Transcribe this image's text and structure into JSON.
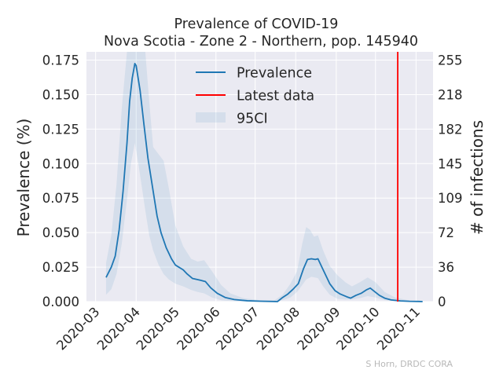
{
  "chart_data": {
    "type": "line",
    "title": "Prevalence of COVID-19",
    "subtitle": "Nova Scotia - Zone 2 - Northern, pop. 145940",
    "ylabel": "Prevalence (%)",
    "y2label": "# of infections",
    "xlim": [
      "2020-02-23",
      "2020-11-14"
    ],
    "ylim": [
      0,
      0.181
    ],
    "x_ticks": [
      "2020-03",
      "2020-04",
      "2020-05",
      "2020-06",
      "2020-07",
      "2020-08",
      "2020-09",
      "2020-10",
      "2020-11"
    ],
    "x_tick_dates": [
      "2020-03-01",
      "2020-04-01",
      "2020-05-01",
      "2020-06-01",
      "2020-07-01",
      "2020-08-01",
      "2020-09-01",
      "2020-10-01",
      "2020-11-01"
    ],
    "y_ticks": [
      "0.000",
      "0.025",
      "0.050",
      "0.075",
      "0.100",
      "0.125",
      "0.150",
      "0.175"
    ],
    "y_tick_values": [
      0,
      0.025,
      0.05,
      0.075,
      0.1,
      0.125,
      0.15,
      0.175
    ],
    "y2_ticks": [
      "0",
      "36",
      "72",
      "109",
      "145",
      "182",
      "218",
      "255"
    ],
    "grid": true,
    "legend_position": "top-center",
    "series": [
      {
        "name": "Prevalence",
        "kind": "line",
        "color": "#1f77b4",
        "points": [
          [
            "2020-03-09",
            0.0175
          ],
          [
            "2020-03-13",
            0.025
          ],
          [
            "2020-03-16",
            0.033
          ],
          [
            "2020-03-19",
            0.052
          ],
          [
            "2020-03-22",
            0.08
          ],
          [
            "2020-03-25",
            0.115
          ],
          [
            "2020-03-27",
            0.145
          ],
          [
            "2020-03-29",
            0.162
          ],
          [
            "2020-03-31",
            0.1725
          ],
          [
            "2020-04-01",
            0.171
          ],
          [
            "2020-04-04",
            0.153
          ],
          [
            "2020-04-07",
            0.128
          ],
          [
            "2020-04-10",
            0.104
          ],
          [
            "2020-04-14",
            0.08
          ],
          [
            "2020-04-17",
            0.062
          ],
          [
            "2020-04-20",
            0.05
          ],
          [
            "2020-04-24",
            0.039
          ],
          [
            "2020-04-28",
            0.031
          ],
          [
            "2020-05-01",
            0.0265
          ],
          [
            "2020-05-07",
            0.023
          ],
          [
            "2020-05-10",
            0.02
          ],
          [
            "2020-05-14",
            0.0168
          ],
          [
            "2020-05-20",
            0.0155
          ],
          [
            "2020-05-24",
            0.0145
          ],
          [
            "2020-05-28",
            0.01
          ],
          [
            "2020-06-02",
            0.006
          ],
          [
            "2020-06-08",
            0.003
          ],
          [
            "2020-06-15",
            0.0015
          ],
          [
            "2020-06-25",
            0.0006
          ],
          [
            "2020-07-05",
            0.0003
          ],
          [
            "2020-07-15",
            0.0001
          ],
          [
            "2020-07-18",
            0.0
          ],
          [
            "2020-07-22",
            0.003
          ],
          [
            "2020-07-26",
            0.0055
          ],
          [
            "2020-07-30",
            0.009
          ],
          [
            "2020-08-03",
            0.013
          ],
          [
            "2020-08-07",
            0.024
          ],
          [
            "2020-08-10",
            0.0305
          ],
          [
            "2020-08-13",
            0.031
          ],
          [
            "2020-08-16",
            0.0305
          ],
          [
            "2020-08-18",
            0.031
          ],
          [
            "2020-08-21",
            0.025
          ],
          [
            "2020-08-24",
            0.019
          ],
          [
            "2020-08-27",
            0.013
          ],
          [
            "2020-08-31",
            0.008
          ],
          [
            "2020-09-04",
            0.0055
          ],
          [
            "2020-09-09",
            0.0035
          ],
          [
            "2020-09-12",
            0.0025
          ],
          [
            "2020-09-16",
            0.0045
          ],
          [
            "2020-09-20",
            0.006
          ],
          [
            "2020-09-24",
            0.0085
          ],
          [
            "2020-09-27",
            0.0098
          ],
          [
            "2020-09-30",
            0.0075
          ],
          [
            "2020-10-04",
            0.0045
          ],
          [
            "2020-10-08",
            0.0025
          ],
          [
            "2020-10-13",
            0.0012
          ],
          [
            "2020-10-20",
            0.0005
          ],
          [
            "2020-10-27",
            0.0002
          ],
          [
            "2020-11-03",
            0.0001
          ],
          [
            "2020-11-06",
            0.0
          ]
        ]
      },
      {
        "name": "Latest data",
        "kind": "vline",
        "color": "#ff0000",
        "date": "2020-10-18"
      },
      {
        "name": "95CI",
        "kind": "band",
        "color": "#1f77b4",
        "upper": [
          [
            "2020-03-09",
            0.028
          ],
          [
            "2020-03-13",
            0.048
          ],
          [
            "2020-03-17",
            0.085
          ],
          [
            "2020-03-21",
            0.14
          ],
          [
            "2020-03-25",
            0.181
          ],
          [
            "2020-04-03",
            0.181
          ],
          [
            "2020-04-08",
            0.181
          ],
          [
            "2020-04-11",
            0.145
          ],
          [
            "2020-04-14",
            0.112
          ],
          [
            "2020-04-18",
            0.107
          ],
          [
            "2020-04-22",
            0.102
          ],
          [
            "2020-04-26",
            0.082
          ],
          [
            "2020-05-01",
            0.055
          ],
          [
            "2020-05-07",
            0.04
          ],
          [
            "2020-05-13",
            0.031
          ],
          [
            "2020-05-18",
            0.029
          ],
          [
            "2020-05-23",
            0.03
          ],
          [
            "2020-05-29",
            0.022
          ],
          [
            "2020-06-05",
            0.012
          ],
          [
            "2020-06-12",
            0.006
          ],
          [
            "2020-06-22",
            0.0025
          ],
          [
            "2020-07-05",
            0.001
          ],
          [
            "2020-07-15",
            0.0005
          ],
          [
            "2020-07-22",
            0.005
          ],
          [
            "2020-07-28",
            0.013
          ],
          [
            "2020-08-02",
            0.022
          ],
          [
            "2020-08-06",
            0.042
          ],
          [
            "2020-08-09",
            0.054
          ],
          [
            "2020-08-12",
            0.052
          ],
          [
            "2020-08-15",
            0.047
          ],
          [
            "2020-08-18",
            0.048
          ],
          [
            "2020-08-22",
            0.037
          ],
          [
            "2020-08-27",
            0.026
          ],
          [
            "2020-09-02",
            0.019
          ],
          [
            "2020-09-08",
            0.014
          ],
          [
            "2020-09-13",
            0.011
          ],
          [
            "2020-09-19",
            0.014
          ],
          [
            "2020-09-25",
            0.0175
          ],
          [
            "2020-10-01",
            0.014
          ],
          [
            "2020-10-08",
            0.007
          ],
          [
            "2020-10-16",
            0.003
          ],
          [
            "2020-10-26",
            0.001
          ],
          [
            "2020-11-06",
            0.0003
          ]
        ],
        "lower": [
          [
            "2020-11-06",
            0.0
          ],
          [
            "2020-10-26",
            0.0
          ],
          [
            "2020-10-16",
            0.0003
          ],
          [
            "2020-10-08",
            0.001
          ],
          [
            "2020-10-01",
            0.003
          ],
          [
            "2020-09-25",
            0.004
          ],
          [
            "2020-09-19",
            0.0025
          ],
          [
            "2020-09-13",
            0.0015
          ],
          [
            "2020-09-08",
            0.0015
          ],
          [
            "2020-09-02",
            0.002
          ],
          [
            "2020-08-27",
            0.005
          ],
          [
            "2020-08-22",
            0.011
          ],
          [
            "2020-08-18",
            0.017
          ],
          [
            "2020-08-13",
            0.018
          ],
          [
            "2020-08-09",
            0.016
          ],
          [
            "2020-08-06",
            0.012
          ],
          [
            "2020-08-02",
            0.007
          ],
          [
            "2020-07-28",
            0.003
          ],
          [
            "2020-07-22",
            0.001
          ],
          [
            "2020-07-15",
            0.0
          ],
          [
            "2020-07-05",
            0.0
          ],
          [
            "2020-06-22",
            0.0
          ],
          [
            "2020-06-12",
            0.0004
          ],
          [
            "2020-06-05",
            0.001
          ],
          [
            "2020-05-29",
            0.003
          ],
          [
            "2020-05-23",
            0.006
          ],
          [
            "2020-05-18",
            0.007
          ],
          [
            "2020-05-13",
            0.0085
          ],
          [
            "2020-05-07",
            0.011
          ],
          [
            "2020-05-01",
            0.013
          ],
          [
            "2020-04-26",
            0.016
          ],
          [
            "2020-04-22",
            0.02
          ],
          [
            "2020-04-18",
            0.027
          ],
          [
            "2020-04-14",
            0.037
          ],
          [
            "2020-04-11",
            0.048
          ],
          [
            "2020-04-08",
            0.066
          ],
          [
            "2020-04-03",
            0.098
          ],
          [
            "2020-03-31",
            0.115
          ],
          [
            "2020-03-28",
            0.1
          ],
          [
            "2020-03-25",
            0.074
          ],
          [
            "2020-03-21",
            0.042
          ],
          [
            "2020-03-17",
            0.02
          ],
          [
            "2020-03-13",
            0.009
          ],
          [
            "2020-03-09",
            0.005
          ]
        ]
      }
    ],
    "credit": "S Horn, DRDC CORA"
  }
}
